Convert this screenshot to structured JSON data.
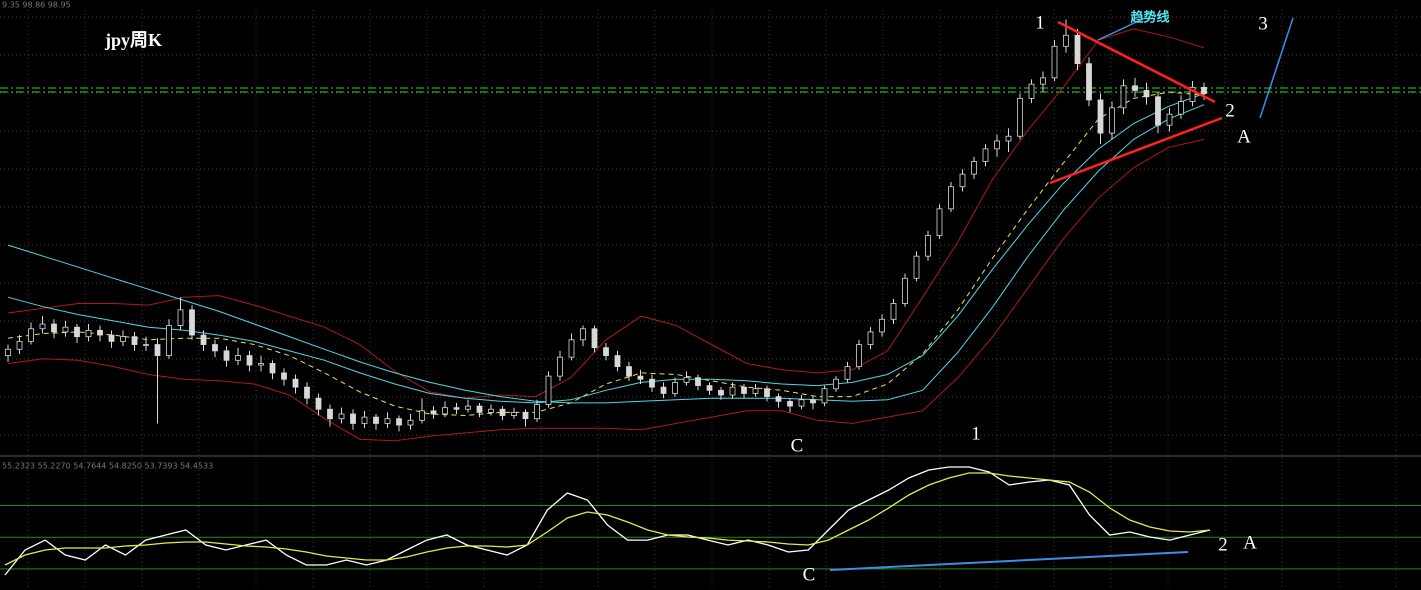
{
  "chart_data": [
    {
      "type": "candlestick",
      "title": "jpy周K",
      "info": "9.35 98.86 98.95",
      "candle_color": "#d8d8d8",
      "ylim": [
        76,
        104.2
      ],
      "ohlc": [
        [
          82.3,
          83.0,
          81.9,
          82.7
        ],
        [
          82.7,
          83.6,
          82.4,
          83.2
        ],
        [
          83.2,
          84.4,
          83.0,
          84.0
        ],
        [
          84.0,
          84.8,
          83.7,
          84.3
        ],
        [
          84.3,
          84.6,
          83.4,
          83.8
        ],
        [
          83.8,
          84.5,
          83.5,
          84.1
        ],
        [
          84.1,
          84.3,
          83.1,
          83.5
        ],
        [
          83.5,
          84.3,
          83.2,
          83.9
        ],
        [
          83.9,
          84.2,
          83.2,
          83.6
        ],
        [
          83.6,
          83.9,
          82.8,
          83.2
        ],
        [
          83.2,
          83.9,
          82.9,
          83.5
        ],
        [
          83.5,
          83.8,
          82.6,
          83.0
        ],
        [
          83.0,
          83.5,
          82.6,
          83.0
        ],
        [
          83.0,
          83.4,
          78.0,
          82.3
        ],
        [
          82.3,
          84.6,
          82.1,
          84.2
        ],
        [
          84.2,
          86.0,
          83.9,
          85.2
        ],
        [
          85.2,
          85.5,
          83.3,
          83.6
        ],
        [
          83.6,
          83.9,
          82.6,
          83.0
        ],
        [
          83.0,
          83.3,
          82.2,
          82.6
        ],
        [
          82.6,
          82.9,
          81.6,
          82.0
        ],
        [
          82.0,
          82.8,
          81.7,
          82.3
        ],
        [
          82.3,
          82.6,
          81.3,
          81.7
        ],
        [
          81.7,
          82.3,
          81.3,
          81.8
        ],
        [
          81.8,
          82.0,
          80.8,
          81.2
        ],
        [
          81.2,
          81.5,
          80.4,
          80.8
        ],
        [
          80.8,
          81.1,
          79.9,
          80.3
        ],
        [
          80.3,
          80.6,
          79.2,
          79.6
        ],
        [
          79.6,
          79.9,
          78.5,
          78.9
        ],
        [
          78.9,
          79.2,
          77.8,
          78.3
        ],
        [
          78.3,
          79.0,
          78.0,
          78.6
        ],
        [
          78.6,
          78.9,
          77.6,
          78.0
        ],
        [
          78.0,
          78.8,
          77.7,
          78.4
        ],
        [
          78.4,
          78.6,
          77.6,
          78.0
        ],
        [
          78.0,
          78.7,
          77.7,
          78.3
        ],
        [
          78.3,
          78.5,
          77.5,
          77.9
        ],
        [
          77.9,
          78.6,
          77.6,
          78.2
        ],
        [
          78.2,
          79.6,
          78.0,
          78.8
        ],
        [
          78.8,
          79.1,
          78.3,
          78.6
        ],
        [
          78.6,
          79.4,
          78.4,
          79.0
        ],
        [
          79.0,
          79.3,
          78.6,
          78.9
        ],
        [
          78.9,
          79.5,
          78.7,
          79.1
        ],
        [
          79.1,
          79.3,
          78.4,
          78.7
        ],
        [
          78.7,
          79.2,
          78.5,
          78.9
        ],
        [
          78.9,
          79.1,
          78.2,
          78.5
        ],
        [
          78.5,
          79.0,
          78.3,
          78.7
        ],
        [
          78.7,
          78.9,
          77.8,
          78.3
        ],
        [
          78.3,
          79.5,
          78.1,
          79.2
        ],
        [
          79.2,
          81.3,
          79.0,
          81.0
        ],
        [
          81.0,
          82.6,
          80.7,
          82.2
        ],
        [
          82.2,
          83.7,
          82.0,
          83.3
        ],
        [
          83.3,
          84.2,
          82.9,
          84.0
        ],
        [
          84.0,
          84.2,
          82.5,
          82.8
        ],
        [
          82.8,
          83.1,
          82.0,
          82.3
        ],
        [
          82.3,
          82.6,
          81.3,
          81.6
        ],
        [
          81.6,
          81.9,
          80.7,
          81.0
        ],
        [
          81.0,
          81.4,
          80.5,
          80.8
        ],
        [
          80.8,
          81.1,
          80.0,
          80.3
        ],
        [
          80.3,
          80.6,
          79.6,
          79.9
        ],
        [
          79.9,
          80.9,
          79.7,
          80.6
        ],
        [
          80.6,
          81.3,
          80.4,
          80.9
        ],
        [
          80.9,
          81.1,
          80.1,
          80.4
        ],
        [
          80.4,
          80.6,
          79.8,
          80.1
        ],
        [
          80.1,
          80.3,
          79.5,
          79.8
        ],
        [
          79.8,
          80.6,
          79.6,
          80.3
        ],
        [
          80.3,
          80.5,
          79.6,
          79.9
        ],
        [
          79.9,
          80.5,
          79.7,
          80.2
        ],
        [
          80.2,
          80.4,
          79.4,
          79.7
        ],
        [
          79.7,
          79.9,
          79.0,
          79.4
        ],
        [
          79.4,
          79.6,
          78.7,
          79.1
        ],
        [
          79.1,
          79.8,
          78.9,
          79.5
        ],
        [
          79.5,
          79.7,
          78.9,
          79.3
        ],
        [
          79.3,
          80.4,
          79.1,
          80.2
        ],
        [
          80.2,
          81.0,
          80.0,
          80.8
        ],
        [
          80.8,
          81.9,
          80.6,
          81.6
        ],
        [
          81.6,
          83.3,
          81.4,
          83.0
        ],
        [
          83.0,
          84.1,
          82.7,
          83.8
        ],
        [
          83.8,
          84.9,
          83.5,
          84.6
        ],
        [
          84.6,
          85.9,
          84.3,
          85.6
        ],
        [
          85.6,
          87.5,
          85.4,
          87.2
        ],
        [
          87.2,
          88.9,
          87.0,
          88.6
        ],
        [
          88.6,
          90.2,
          88.3,
          89.9
        ],
        [
          89.9,
          91.9,
          89.7,
          91.6
        ],
        [
          91.6,
          93.3,
          91.4,
          93.0
        ],
        [
          93.0,
          94.1,
          92.7,
          93.8
        ],
        [
          93.8,
          94.9,
          93.5,
          94.6
        ],
        [
          94.6,
          95.7,
          94.3,
          95.4
        ],
        [
          95.4,
          96.3,
          94.9,
          95.9
        ],
        [
          95.9,
          96.7,
          95.2,
          96.2
        ],
        [
          96.2,
          98.9,
          96.0,
          98.6
        ],
        [
          98.6,
          99.8,
          98.3,
          99.5
        ],
        [
          99.5,
          100.3,
          99.0,
          99.9
        ],
        [
          99.9,
          102.3,
          99.7,
          101.9
        ],
        [
          101.9,
          103.6,
          101.5,
          102.6
        ],
        [
          102.6,
          103.0,
          100.4,
          100.8
        ],
        [
          100.8,
          101.2,
          98.1,
          98.5
        ],
        [
          98.5,
          98.9,
          95.7,
          96.4
        ],
        [
          96.4,
          98.4,
          96.0,
          98.0
        ],
        [
          98.0,
          99.8,
          97.6,
          99.4
        ],
        [
          99.4,
          99.9,
          98.7,
          99.1
        ],
        [
          99.1,
          99.6,
          98.2,
          98.7
        ],
        [
          98.7,
          99.0,
          96.4,
          96.9
        ],
        [
          96.9,
          98.0,
          96.5,
          97.6
        ],
        [
          97.6,
          98.8,
          97.3,
          98.4
        ],
        [
          98.4,
          99.7,
          98.1,
          99.3
        ],
        [
          99.3,
          99.6,
          98.5,
          98.9
        ]
      ],
      "lines": [
        {
          "color": "#e8e84a",
          "dashed": true,
          "values": [
            83.4,
            83.7,
            83.8,
            83.6,
            83.3,
            83.4,
            83.4,
            83.0,
            82.3,
            81.2,
            80.0,
            79.1,
            78.6,
            78.5,
            78.7,
            78.7,
            79.3,
            80.5,
            81.2,
            81.1,
            80.7,
            80.3,
            80.1,
            79.7,
            79.7,
            80.5,
            82.4,
            85.2,
            88.5,
            91.6,
            94.5,
            97.3,
            98.6,
            99.0,
            98.8
          ]
        },
        {
          "color": "#b01818",
          "dashed": false,
          "values": [
            85.0,
            85.3,
            85.6,
            85.6,
            85.5,
            86.0,
            86.1,
            85.5,
            84.8,
            84.1,
            83.0,
            81.3,
            80.0,
            79.6,
            79.8,
            79.7,
            80.9,
            83.3,
            84.8,
            84.2,
            83.0,
            81.8,
            81.4,
            81.2,
            81.4,
            82.6,
            86.0,
            89.5,
            93.5,
            96.6,
            99.3,
            102.3,
            103.0,
            102.5,
            101.8
          ]
        },
        {
          "color": "#b01818",
          "dashed": false,
          "values": [
            81.8,
            82.1,
            82.0,
            81.6,
            81.1,
            80.8,
            80.7,
            80.5,
            79.8,
            78.3,
            77.0,
            76.9,
            77.2,
            77.4,
            77.6,
            77.7,
            77.7,
            77.7,
            77.6,
            78.0,
            78.4,
            78.8,
            78.8,
            78.2,
            78.0,
            78.4,
            78.8,
            80.9,
            83.5,
            86.6,
            89.7,
            92.3,
            94.2,
            95.5,
            96.0
          ]
        },
        {
          "color": "#4fd6e8",
          "dashed": false,
          "values": [
            86.0,
            85.4,
            84.9,
            84.5,
            84.1,
            83.9,
            83.6,
            83.2,
            82.6,
            82.0,
            81.2,
            80.5,
            79.9,
            79.6,
            79.4,
            79.3,
            79.5,
            80.1,
            80.6,
            80.8,
            80.8,
            80.7,
            80.5,
            80.4,
            80.6,
            81.1,
            82.3,
            84.8,
            87.8,
            90.6,
            93.2,
            95.4,
            97.0,
            98.1,
            98.9
          ]
        },
        {
          "color": "#4fd6e8",
          "dashed": false,
          "values": [
            89.3,
            88.6,
            87.9,
            87.2,
            86.5,
            85.8,
            85.1,
            84.3,
            83.5,
            82.7,
            81.9,
            81.2,
            80.6,
            80.1,
            79.7,
            79.4,
            79.3,
            79.3,
            79.4,
            79.5,
            79.6,
            79.6,
            79.6,
            79.5,
            79.4,
            79.5,
            80.1,
            82.5,
            85.4,
            88.6,
            91.5,
            94.0,
            96.0,
            97.3,
            98.2
          ]
        }
      ],
      "annotations": [
        "1",
        "趋势线",
        "3",
        "2",
        "A",
        "C",
        "1"
      ]
    },
    {
      "type": "line",
      "info": "55.2323 55.2270 54.7644 54.8250 53.7393 54.4533",
      "ylim": [
        0,
        125
      ],
      "levels": [
        20,
        50,
        80
      ],
      "level_color": "#1f8a1f",
      "series": [
        {
          "color": "#ffffff",
          "values": [
            14.2,
            37.9,
            47.3,
            33.1,
            28.4,
            42.6,
            33.1,
            47.3,
            52.1,
            56.8,
            42.6,
            37.9,
            42.6,
            47.3,
            33.1,
            23.7,
            23.7,
            28.4,
            23.7,
            28.4,
            37.9,
            47.3,
            52.1,
            42.6,
            37.9,
            33.1,
            42.6,
            75.8,
            91.9,
            85.2,
            61.6,
            47.3,
            47.3,
            52.1,
            52.1,
            47.3,
            42.6,
            47.3,
            42.6,
            36.0,
            37.9,
            56.8,
            75.8,
            85.2,
            94.7,
            106.1,
            113.6,
            116.5,
            116.5,
            111.7,
            99.4,
            102.3,
            104.2,
            99.4,
            71.0,
            52.1,
            54.9,
            50.2,
            47.3,
            52.1,
            56.8
          ]
        },
        {
          "color": "#e8e84a",
          "values": [
            23.7,
            33.1,
            37.9,
            39.8,
            39.8,
            39.8,
            41.7,
            42.6,
            44.5,
            45.5,
            45.5,
            43.6,
            41.7,
            40.7,
            38.8,
            36.0,
            32.2,
            30.3,
            28.4,
            28.4,
            31.3,
            36.0,
            39.8,
            41.7,
            41.7,
            40.7,
            42.6,
            54.9,
            68.2,
            73.9,
            71.0,
            64.4,
            56.8,
            52.1,
            50.2,
            49.2,
            47.3,
            46.4,
            45.5,
            43.6,
            42.6,
            47.3,
            56.8,
            66.3,
            77.7,
            90.0,
            99.4,
            106.1,
            110.8,
            110.8,
            108.0,
            106.1,
            104.2,
            102.3,
            92.8,
            77.7,
            66.3,
            59.7,
            55.9,
            54.9,
            56.8
          ]
        }
      ],
      "annotations": [
        "2",
        "A",
        "C"
      ]
    }
  ]
}
